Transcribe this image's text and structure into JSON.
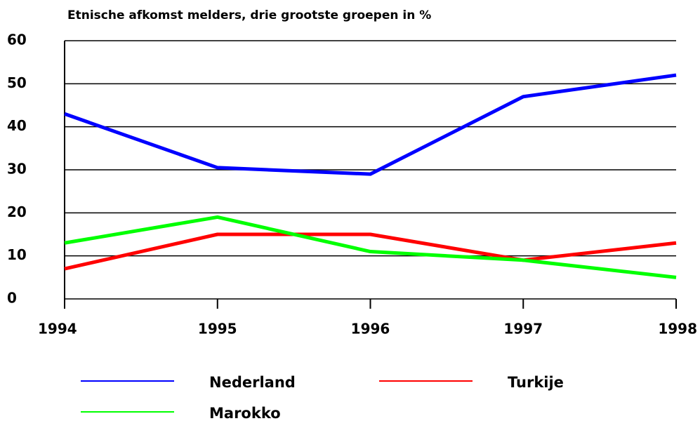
{
  "chart_data": {
    "type": "line",
    "title": "Etnische afkomst melders, drie grootste groepen in %",
    "x": [
      1994,
      1995,
      1996,
      1997,
      1998
    ],
    "series": [
      {
        "name": "Nederland",
        "color": "#0000ff",
        "values": [
          43,
          30.5,
          29,
          47,
          52
        ]
      },
      {
        "name": "Turkije",
        "color": "#ff0000",
        "values": [
          7,
          15,
          15,
          9,
          13
        ]
      },
      {
        "name": "Marokko",
        "color": "#00ff00",
        "values": [
          13,
          19,
          11,
          9,
          5
        ]
      }
    ],
    "xlim": [
      1994,
      1998
    ],
    "xticks": [
      1994,
      1995,
      1996,
      1997,
      1998
    ],
    "ylim": [
      0,
      60
    ],
    "yticks": [
      0,
      10,
      20,
      30,
      40,
      50,
      60
    ],
    "grid": true
  }
}
